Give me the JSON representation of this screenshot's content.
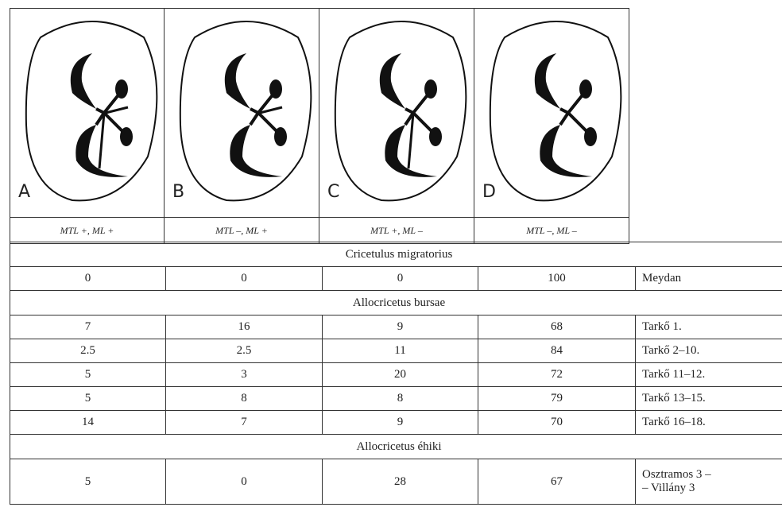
{
  "header": {
    "diagrams": [
      {
        "letter": "A",
        "label": "MTL +, ML +"
      },
      {
        "letter": "B",
        "label": "MTL –, ML +"
      },
      {
        "letter": "C",
        "label": "MTL +, ML –"
      },
      {
        "letter": "D",
        "label": "MTL –, ML –"
      }
    ]
  },
  "groups": [
    {
      "name": "Cricetulus migratorius",
      "rows": [
        {
          "values": [
            0,
            0,
            0,
            100
          ],
          "locality": "Meydan"
        }
      ]
    },
    {
      "name": "Allocricetus bursae",
      "rows": [
        {
          "values": [
            7,
            16,
            9,
            68
          ],
          "locality": "Tarkő 1."
        },
        {
          "values": [
            2.5,
            2.5,
            11,
            84
          ],
          "locality": "Tarkő 2–10."
        },
        {
          "values": [
            5,
            3,
            20,
            72
          ],
          "locality": "Tarkő 11–12."
        },
        {
          "values": [
            5,
            8,
            8,
            79
          ],
          "locality": "Tarkő 13–15."
        },
        {
          "values": [
            14,
            7,
            9,
            70
          ],
          "locality": "Tarkő 16–18."
        }
      ]
    },
    {
      "name": "Allocricetus éhiki",
      "rows": [
        {
          "values": [
            5,
            0,
            28,
            67
          ],
          "locality": "Osztramos 3 –\n– Villány 3"
        }
      ]
    }
  ]
}
